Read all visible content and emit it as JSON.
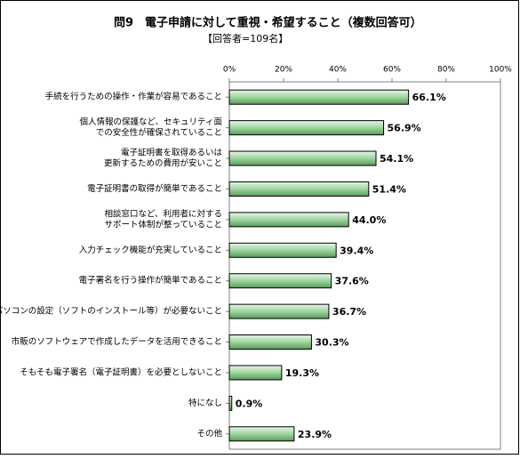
{
  "chart_data": {
    "type": "bar",
    "orientation": "horizontal",
    "title": "問9　電子申請に対して重視・希望すること（複数回答可）",
    "subtitle": "【回答者=109名】",
    "categories": [
      [
        "手続を行うための操作・作業が容易であること"
      ],
      [
        "個人情報の保護など、セキュリティ面",
        "での安全性が確保されていること"
      ],
      [
        "電子証明書を取得あるいは",
        "更新するための費用が安いこと"
      ],
      [
        "電子証明書の取得が簡単であること"
      ],
      [
        "相談窓口など、利用者に対する",
        "サポート体制が整っていること"
      ],
      [
        "入力チェック機能が充実していること"
      ],
      [
        "電子署名を行う操作が簡単であること"
      ],
      [
        "パソコンの設定（ソフトのインストール等）が必要ないこと"
      ],
      [
        "市販のソフトウェアで作成したデータを活用できること"
      ],
      [
        "そもそも電子署名（電子証明書）を必要としないこと"
      ],
      [
        "特になし"
      ],
      [
        "その他"
      ]
    ],
    "values": [
      66.1,
      56.9,
      54.1,
      51.4,
      44.0,
      39.4,
      37.6,
      36.7,
      30.3,
      19.3,
      0.9,
      23.9
    ],
    "value_labels": [
      "66.1%",
      "56.9%",
      "54.1%",
      "51.4%",
      "44.0%",
      "39.4%",
      "37.6%",
      "36.7%",
      "30.3%",
      "19.3%",
      "0.9%",
      "23.9%"
    ],
    "color": "#9fd49f",
    "xlim": [
      0,
      100
    ],
    "xticks": [
      {
        "value": 0,
        "label": "0%"
      },
      {
        "value": 20,
        "label": "20%"
      },
      {
        "value": 40,
        "label": "40%"
      },
      {
        "value": 60,
        "label": "60%"
      },
      {
        "value": 80,
        "label": "80%"
      },
      {
        "value": 100,
        "label": "100%"
      }
    ],
    "grid": false
  }
}
